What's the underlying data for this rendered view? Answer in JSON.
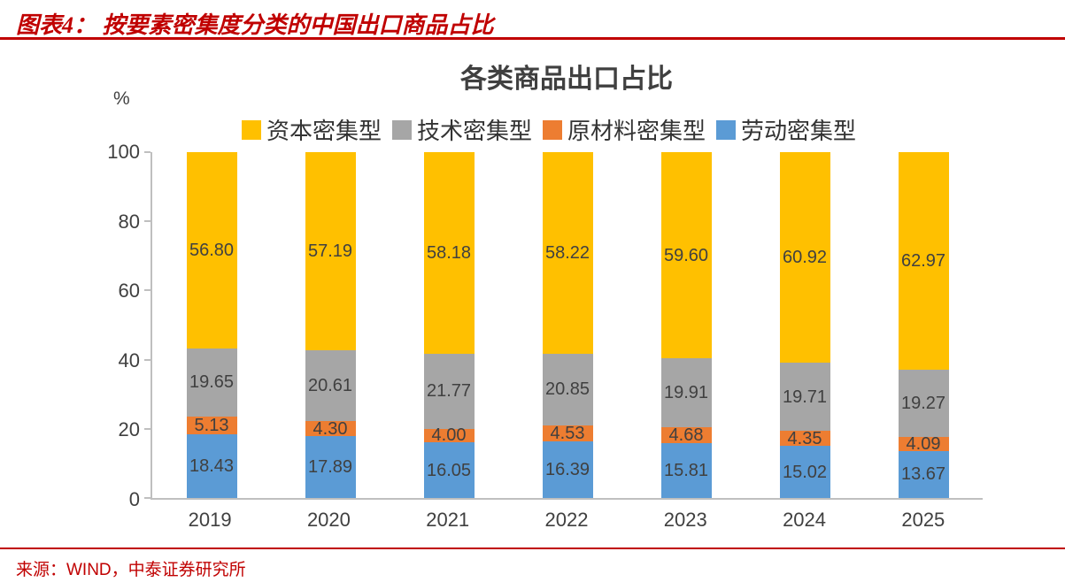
{
  "header": {
    "title": "图表4： 按要素密集度分类的中国出口商品占比"
  },
  "chart_data": {
    "type": "bar",
    "stacked": true,
    "title": "各类商品出口占比",
    "ylabel": "%",
    "xlabel": "",
    "ylim": [
      0,
      100
    ],
    "yticks": [
      0,
      20,
      40,
      60,
      80,
      100
    ],
    "grid": false,
    "legend_position": "top",
    "value_label_decimals": 2,
    "categories": [
      "2019",
      "2020",
      "2021",
      "2022",
      "2023",
      "2024",
      "2025"
    ],
    "series": [
      {
        "name": "劳动密集型",
        "color": "#5B9BD5",
        "values": [
          18.43,
          17.89,
          16.05,
          16.39,
          15.81,
          15.02,
          13.67
        ]
      },
      {
        "name": "原材料密集型",
        "color": "#ED7D31",
        "values": [
          5.13,
          4.3,
          4.0,
          4.53,
          4.68,
          4.35,
          4.09
        ]
      },
      {
        "name": "技术密集型",
        "color": "#A6A6A6",
        "values": [
          19.65,
          20.61,
          21.77,
          20.85,
          19.91,
          19.71,
          19.27
        ]
      },
      {
        "name": "资本密集型",
        "color": "#FFC000",
        "values": [
          56.8,
          57.19,
          58.18,
          58.22,
          59.6,
          60.92,
          62.97
        ]
      }
    ],
    "legend_order": [
      "资本密集型",
      "技术密集型",
      "原材料密集型",
      "劳动密集型"
    ]
  },
  "footer": {
    "source": "来源：WIND，中泰证券研究所"
  },
  "colors": {
    "accent_red": "#C00000",
    "text": "#404040",
    "axis": "#BFBFBF"
  }
}
